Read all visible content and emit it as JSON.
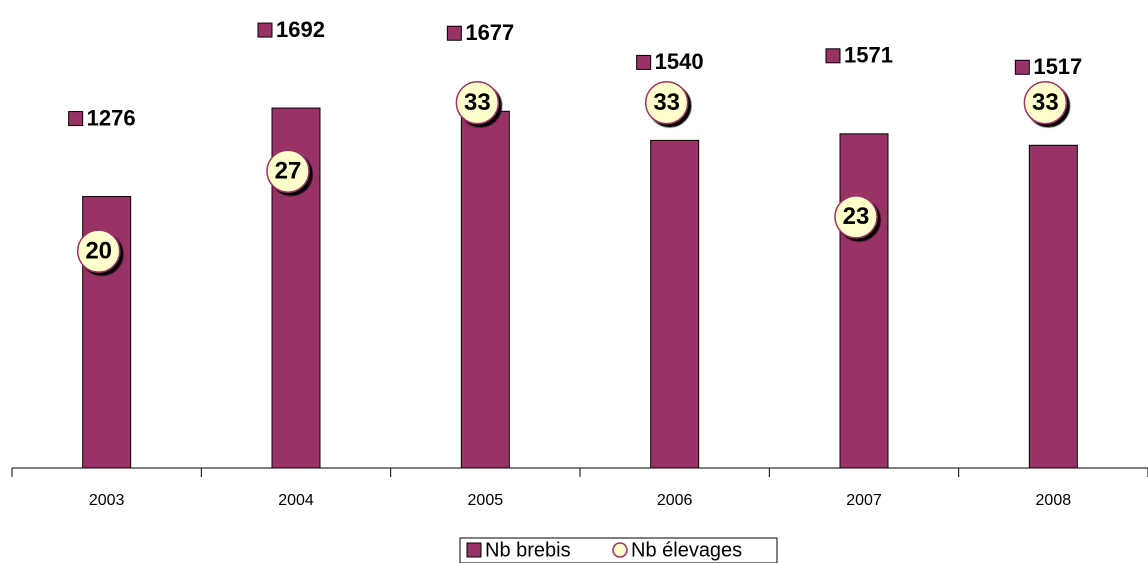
{
  "chart_data": {
    "type": "bar",
    "categories": [
      "2003",
      "2004",
      "2005",
      "2006",
      "2007",
      "2008"
    ],
    "series": [
      {
        "name": "Nb brebis",
        "color": "#993366",
        "values": [
          1276,
          1692,
          1677,
          1540,
          1571,
          1517
        ]
      },
      {
        "name": "Nb élevages",
        "color": "#ffffcc",
        "axis": "y2",
        "values": [
          20,
          27,
          33,
          33,
          23,
          33
        ]
      }
    ],
    "ylim": [
      0,
      2200
    ],
    "y2lim": [
      1,
      42
    ]
  }
}
